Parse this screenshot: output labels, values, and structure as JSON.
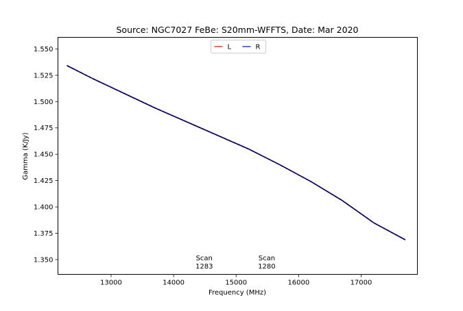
{
  "chart_data": {
    "type": "line",
    "title": "Source: NGC7027 FeBe: S20mm-WFFTS, Date: Mar 2020",
    "xlabel": "Frequency (MHz)",
    "ylabel": "Gamma (K/Jy)",
    "xlim": [
      12150,
      17900
    ],
    "ylim": [
      1.336,
      1.561
    ],
    "xticks": [
      13000,
      14000,
      15000,
      16000,
      17000
    ],
    "xtick_labels": [
      "13000",
      "14000",
      "15000",
      "16000",
      "17000"
    ],
    "yticks": [
      1.35,
      1.375,
      1.4,
      1.425,
      1.45,
      1.475,
      1.5,
      1.525,
      1.55
    ],
    "ytick_labels": [
      "1.350",
      "1.375",
      "1.400",
      "1.425",
      "1.450",
      "1.475",
      "1.500",
      "1.525",
      "1.550"
    ],
    "grid": false,
    "legend": {
      "placement": "top-center",
      "columns": 2
    },
    "series": [
      {
        "name": "L",
        "color": "#ff0000",
        "style": "solid",
        "x": [
          12300,
          12700,
          13200,
          13700,
          14200,
          14700,
          15200,
          15700,
          16200,
          16700,
          17200,
          17700
        ],
        "y": [
          1.534,
          1.522,
          1.508,
          1.494,
          1.481,
          1.468,
          1.455,
          1.44,
          1.424,
          1.406,
          1.385,
          1.369
        ]
      },
      {
        "name": "R",
        "color": "#0000ff",
        "style": "solid",
        "x": [
          12300,
          12700,
          13200,
          13700,
          14200,
          14700,
          15200,
          15700,
          16200,
          16700,
          17200,
          17700
        ],
        "y": [
          1.534,
          1.522,
          1.508,
          1.494,
          1.481,
          1.468,
          1.455,
          1.44,
          1.424,
          1.406,
          1.385,
          1.369
        ]
      },
      {
        "name": "",
        "color": "#000000",
        "style": "dashed",
        "x": [
          12300,
          12700,
          13200,
          13700,
          14200,
          14700,
          15200,
          15700,
          16200,
          16700,
          17200,
          17700
        ],
        "y": [
          1.534,
          1.522,
          1.508,
          1.494,
          1.481,
          1.468,
          1.455,
          1.44,
          1.424,
          1.406,
          1.385,
          1.369
        ]
      }
    ],
    "annotations": [
      {
        "lines": [
          "Scan",
          "1283"
        ],
        "x": 14490,
        "y": 1.3455
      },
      {
        "lines": [
          "Scan",
          "1280"
        ],
        "x": 15490,
        "y": 1.3455
      }
    ]
  }
}
